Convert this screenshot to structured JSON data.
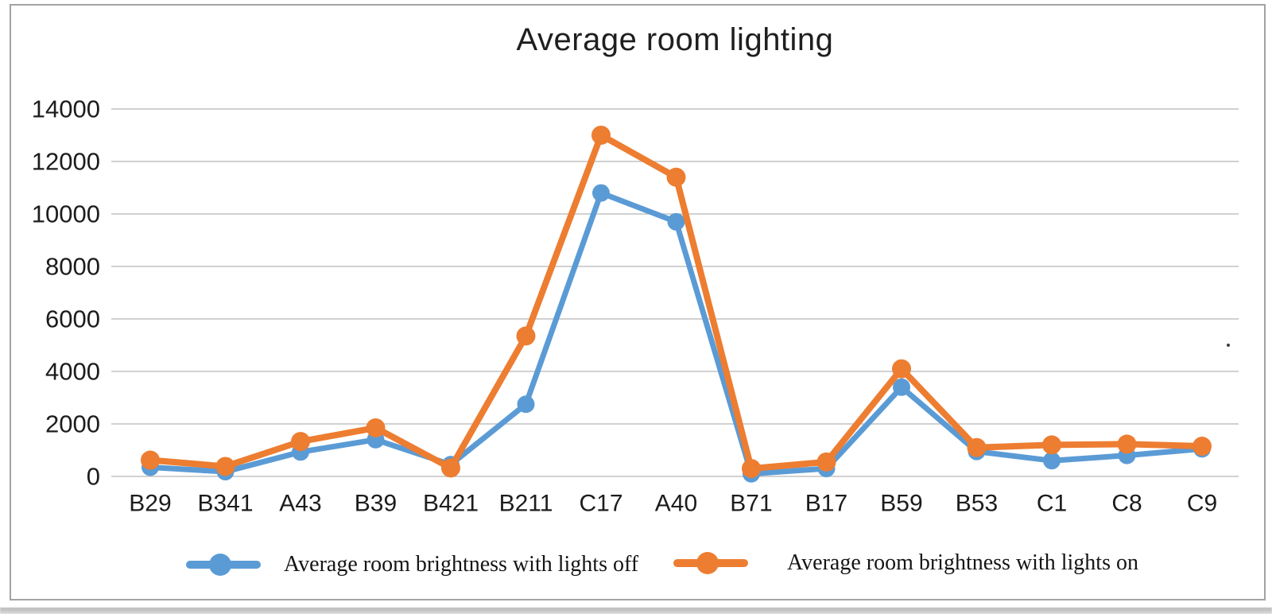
{
  "title": "Average room lighting",
  "chart_data": {
    "type": "line",
    "title": "Average room lighting",
    "categories": [
      "B29",
      "B341",
      "A43",
      "B39",
      "B421",
      "B211",
      "C17",
      "A40",
      "B71",
      "B17",
      "B59",
      "B53",
      "C1",
      "C8",
      "C9"
    ],
    "series": [
      {
        "name": "Average room brightness with lights off",
        "color": "#5B9BD5",
        "values": [
          350,
          180,
          930,
          1400,
          450,
          2750,
          10800,
          9700,
          100,
          300,
          3400,
          950,
          600,
          800,
          1050
        ]
      },
      {
        "name": "Average room brightness with lights on",
        "color": "#ED7D31",
        "values": [
          620,
          380,
          1330,
          1850,
          320,
          5350,
          13000,
          11400,
          300,
          550,
          4100,
          1100,
          1200,
          1230,
          1150
        ]
      }
    ],
    "xlabel": "",
    "ylabel": "",
    "ylim": [
      0,
      14000
    ],
    "yticks": [
      0,
      2000,
      4000,
      6000,
      8000,
      10000,
      12000,
      14000
    ],
    "grid": true,
    "legend_position": "bottom",
    "gridline_color": "#c2c2c2",
    "axis_text_color": "#1c1c1c"
  }
}
